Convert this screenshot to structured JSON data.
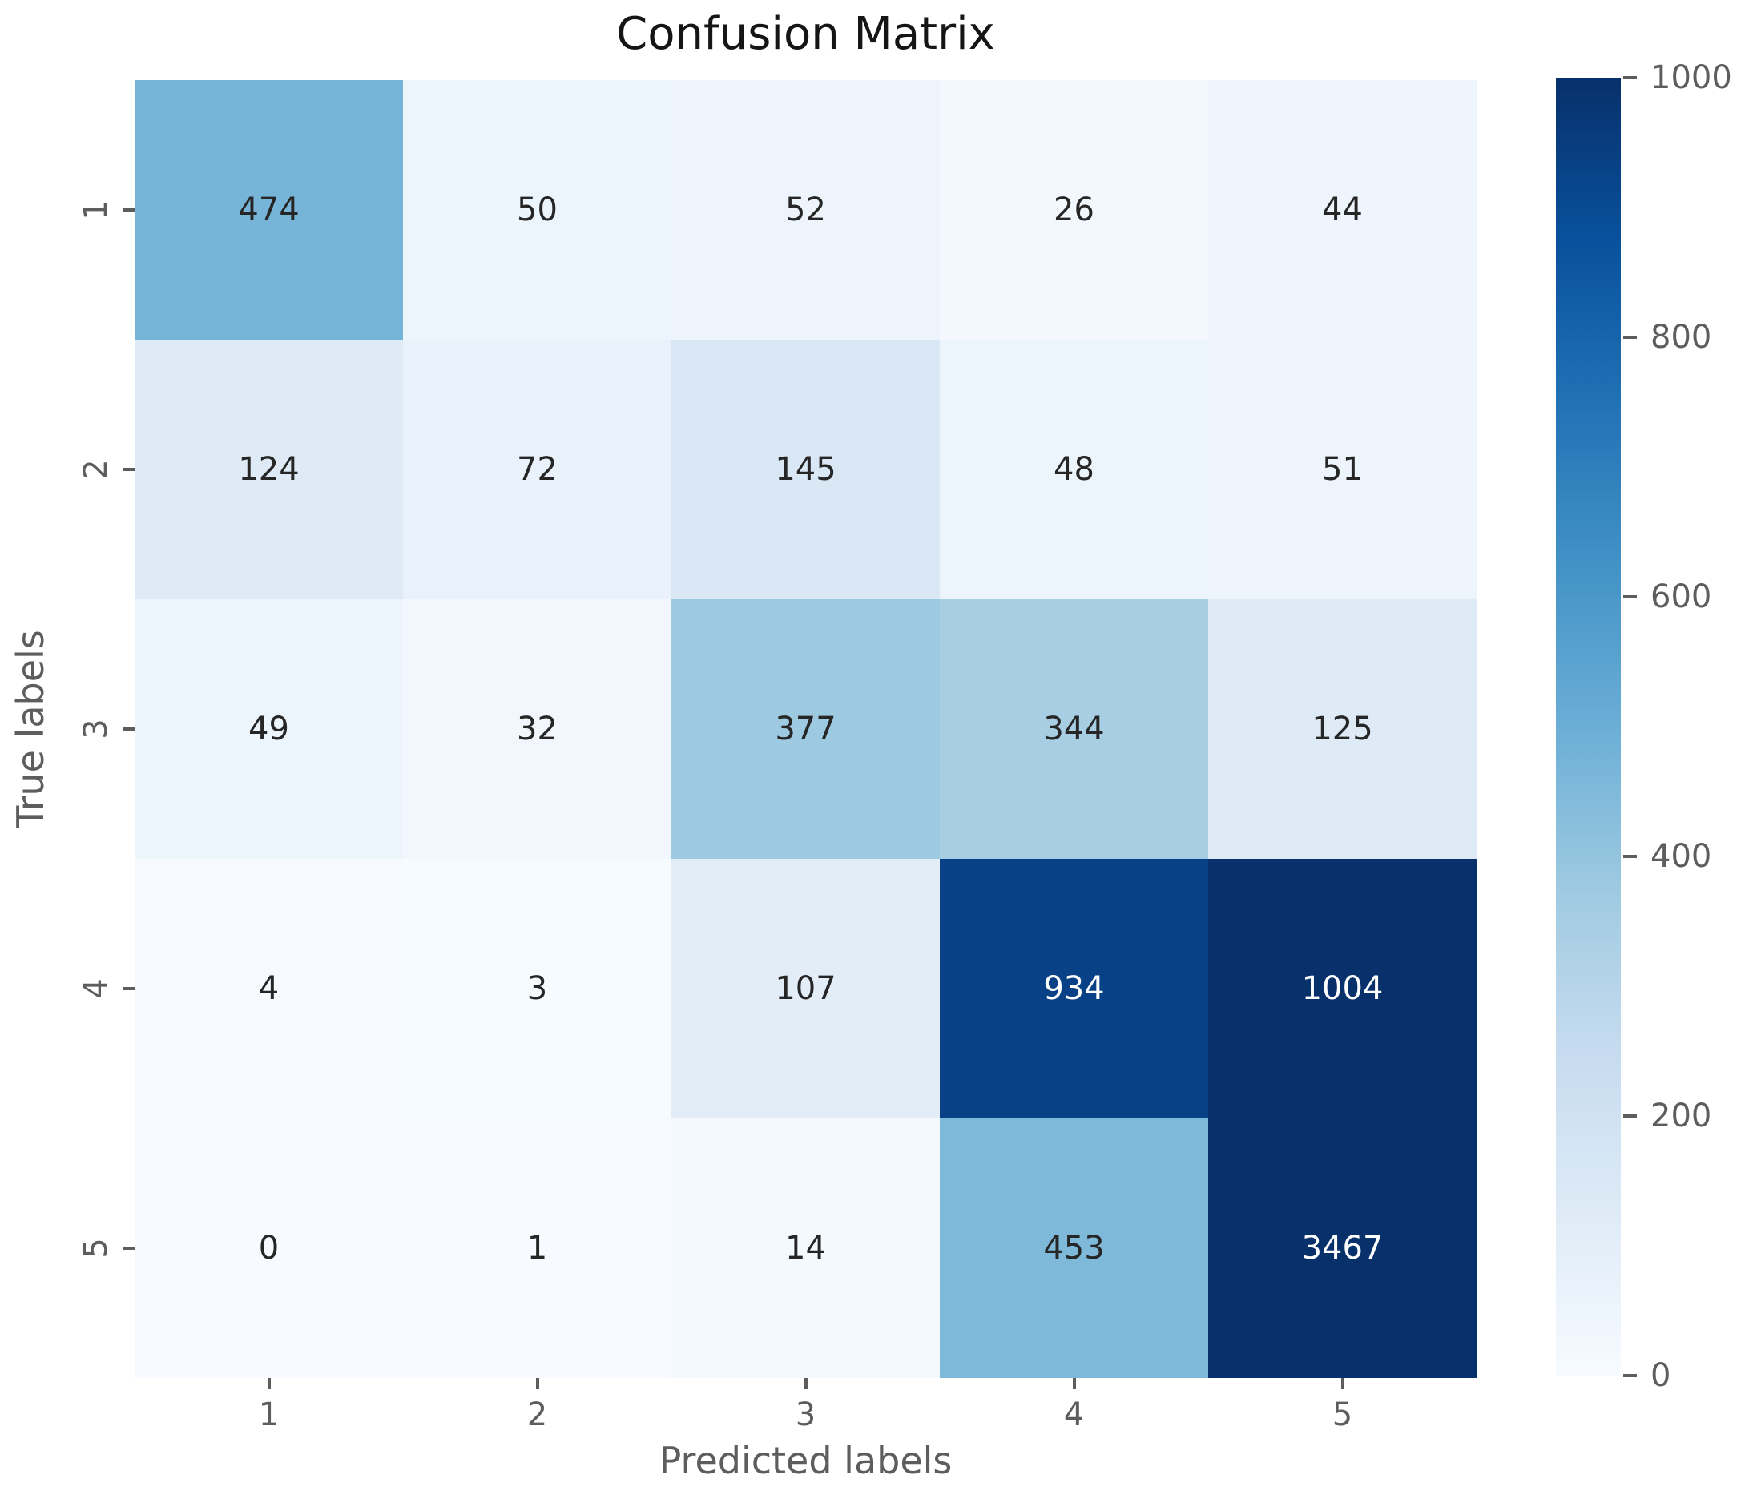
{
  "chart_data": {
    "type": "heatmap",
    "title": "Confusion Matrix",
    "xlabel": "Predicted labels",
    "ylabel": "True labels",
    "x_ticklabels": [
      "1",
      "2",
      "3",
      "4",
      "5"
    ],
    "y_ticklabels": [
      "1",
      "2",
      "3",
      "4",
      "5"
    ],
    "matrix": [
      [
        474,
        50,
        52,
        26,
        44
      ],
      [
        124,
        72,
        145,
        48,
        51
      ],
      [
        49,
        32,
        377,
        344,
        125
      ],
      [
        4,
        3,
        107,
        934,
        1004
      ],
      [
        0,
        1,
        14,
        453,
        3467
      ]
    ],
    "colormap": "Blues",
    "vmin": 0,
    "vmax": 1000,
    "colorbar_ticks": [
      0,
      200,
      400,
      600,
      800,
      1000
    ],
    "colorbar_position": "right",
    "grid": false,
    "annotated": true
  },
  "colors": {
    "background": "#ffffff",
    "title_text": "#151515",
    "tick_text": "#5d5d5d",
    "axis_label_text": "#5d5d5d",
    "annotation_dark": "#262626",
    "annotation_light": "#ffffff",
    "colormap_min": "#f7fbff",
    "colormap_max": "#08306b"
  }
}
